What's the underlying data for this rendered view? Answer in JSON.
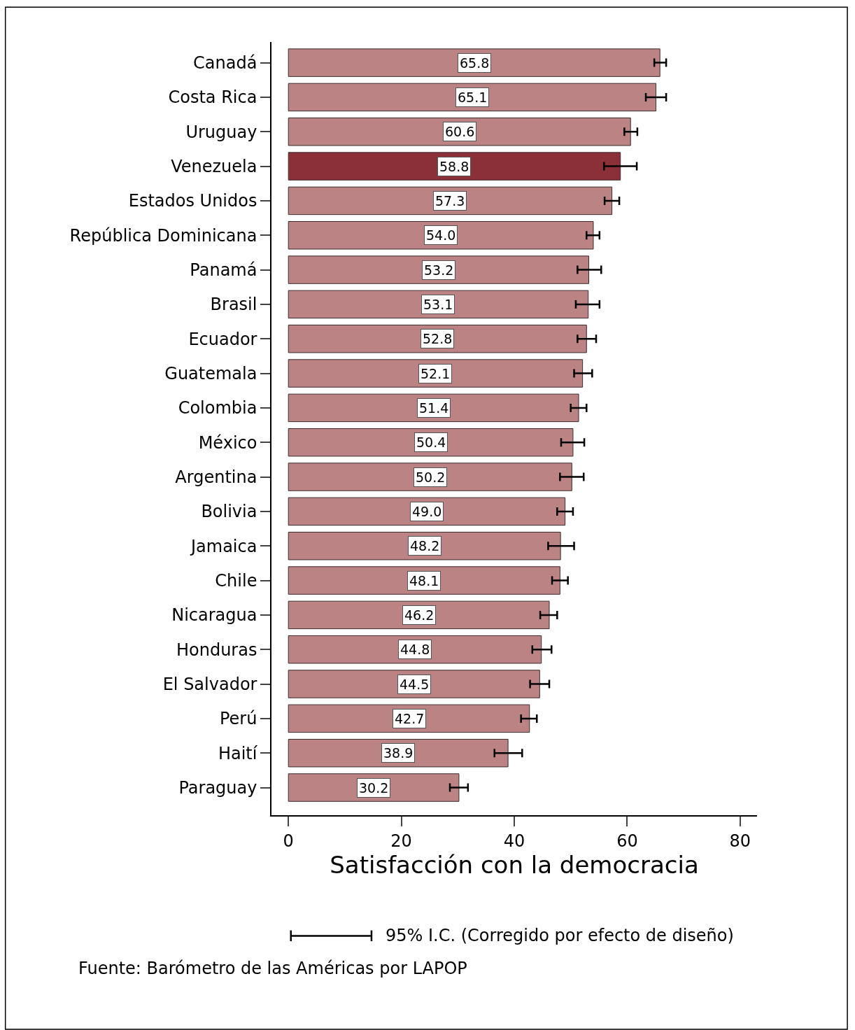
{
  "chart_data": {
    "type": "bar",
    "orientation": "horizontal",
    "xlabel": "Satisfacción con la democracia",
    "categories": [
      "Canadá",
      "Costa Rica",
      "Uruguay",
      "Venezuela",
      "Estados Unidos",
      "República Dominicana",
      "Panamá",
      "Brasil",
      "Ecuador",
      "Guatemala",
      "Colombia",
      "México",
      "Argentina",
      "Bolivia",
      "Jamaica",
      "Chile",
      "Nicaragua",
      "Honduras",
      "El Salvador",
      "Perú",
      "Haití",
      "Paraguay"
    ],
    "values": [
      65.8,
      65.1,
      60.6,
      58.8,
      57.3,
      54.0,
      53.2,
      53.1,
      52.8,
      52.1,
      51.4,
      50.4,
      50.2,
      49.0,
      48.2,
      48.1,
      46.2,
      44.8,
      44.5,
      42.7,
      38.9,
      30.2
    ],
    "errors": [
      [
        64.8,
        66.9
      ],
      [
        63.3,
        66.9
      ],
      [
        59.5,
        61.8
      ],
      [
        55.9,
        61.7
      ],
      [
        56.0,
        58.6
      ],
      [
        52.8,
        55.1
      ],
      [
        51.2,
        55.4
      ],
      [
        50.9,
        55.1
      ],
      [
        51.2,
        54.5
      ],
      [
        50.6,
        53.8
      ],
      [
        50.0,
        52.8
      ],
      [
        48.3,
        52.4
      ],
      [
        48.1,
        52.3
      ],
      [
        47.6,
        50.4
      ],
      [
        46.0,
        50.6
      ],
      [
        46.7,
        49.5
      ],
      [
        44.6,
        47.6
      ],
      [
        43.2,
        46.6
      ],
      [
        42.8,
        46.2
      ],
      [
        41.2,
        44.0
      ],
      [
        36.5,
        41.4
      ],
      [
        28.6,
        31.8
      ]
    ],
    "colors": [
      "#bc8385",
      "#bc8385",
      "#bc8385",
      "#8b3039",
      "#bc8385",
      "#bc8385",
      "#bc8385",
      "#bc8385",
      "#bc8385",
      "#bc8385",
      "#bc8385",
      "#bc8385",
      "#bc8385",
      "#bc8385",
      "#bc8385",
      "#bc8385",
      "#bc8385",
      "#bc8385",
      "#bc8385",
      "#bc8385",
      "#bc8385",
      "#bc8385"
    ],
    "value_labels": [
      "65.8",
      "65.1",
      "60.6",
      "58.8",
      "57.3",
      "54.0",
      "53.2",
      "53.1",
      "52.8",
      "52.1",
      "51.4",
      "50.4",
      "50.2",
      "49.0",
      "48.2",
      "48.1",
      "46.2",
      "44.8",
      "44.5",
      "42.7",
      "38.9",
      "30.2"
    ],
    "xlim": [
      -3,
      83
    ],
    "xticks": [
      0,
      20,
      40,
      60,
      80
    ],
    "annotations": [
      "95% I.C. (Corregido por efecto de diseño)",
      "Fuente: Barómetro de las Américas por LAPOP"
    ]
  }
}
